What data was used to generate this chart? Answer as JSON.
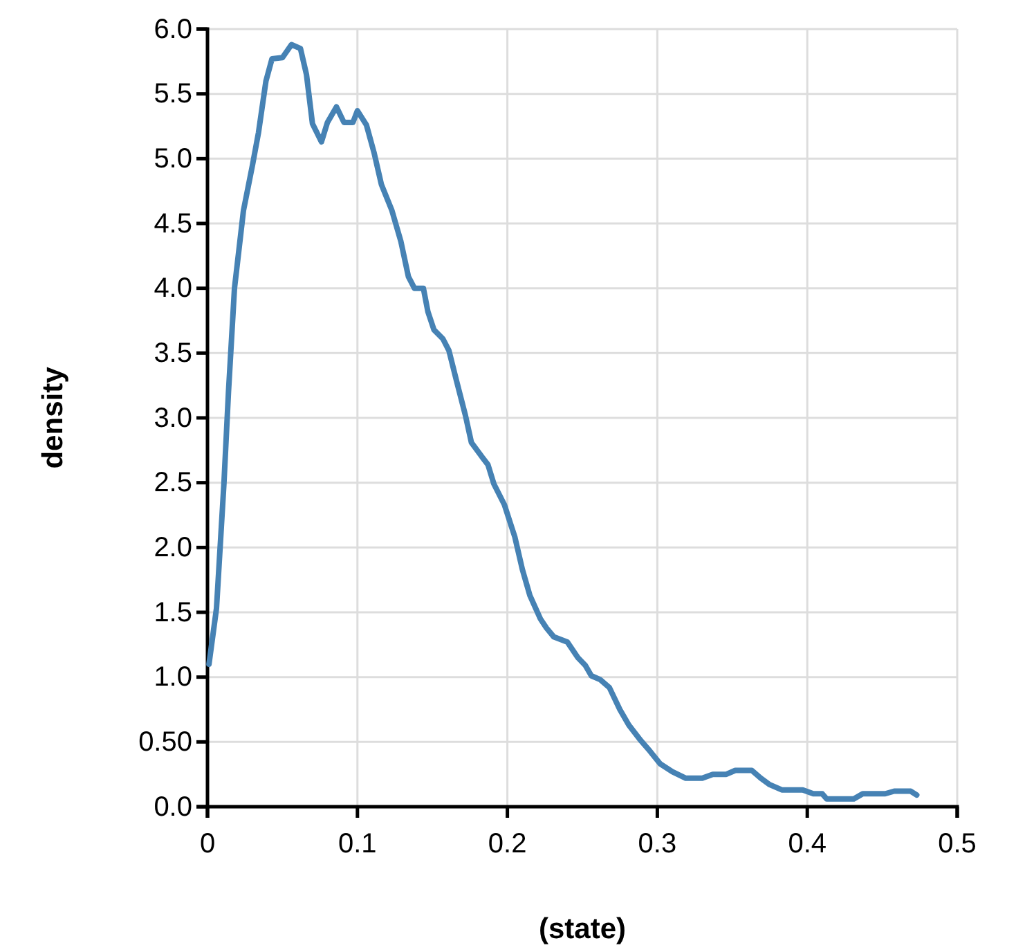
{
  "chart_data": {
    "type": "line",
    "xlabel": "(state)",
    "ylabel": "density",
    "x": [
      0.001,
      0.006,
      0.011,
      0.014,
      0.018,
      0.024,
      0.03,
      0.034,
      0.039,
      0.043,
      0.05,
      0.056,
      0.062,
      0.066,
      0.07,
      0.076,
      0.08,
      0.086,
      0.091,
      0.097,
      0.1,
      0.106,
      0.111,
      0.116,
      0.123,
      0.129,
      0.134,
      0.138,
      0.144,
      0.147,
      0.151,
      0.157,
      0.161,
      0.166,
      0.172,
      0.176,
      0.183,
      0.187,
      0.191,
      0.198,
      0.205,
      0.21,
      0.215,
      0.222,
      0.226,
      0.231,
      0.24,
      0.247,
      0.252,
      0.256,
      0.262,
      0.268,
      0.275,
      0.281,
      0.289,
      0.295,
      0.302,
      0.31,
      0.319,
      0.33,
      0.337,
      0.346,
      0.352,
      0.363,
      0.369,
      0.375,
      0.383,
      0.397,
      0.404,
      0.41,
      0.413,
      0.431,
      0.437,
      0.452,
      0.458,
      0.469,
      0.473
    ],
    "series": [
      {
        "color": "#4682b4",
        "values": [
          1.1,
          1.53,
          2.5,
          3.2,
          4.0,
          4.6,
          4.95,
          5.2,
          5.6,
          5.77,
          5.78,
          5.88,
          5.85,
          5.65,
          5.27,
          5.13,
          5.28,
          5.4,
          5.28,
          5.28,
          5.37,
          5.26,
          5.05,
          4.8,
          4.6,
          4.36,
          4.09,
          4.0,
          4.0,
          3.82,
          3.68,
          3.61,
          3.52,
          3.29,
          3.02,
          2.81,
          2.7,
          2.64,
          2.49,
          2.33,
          2.08,
          1.83,
          1.63,
          1.45,
          1.38,
          1.31,
          1.27,
          1.15,
          1.09,
          1.01,
          0.98,
          0.92,
          0.75,
          0.63,
          0.51,
          0.43,
          0.33,
          0.27,
          0.22,
          0.22,
          0.25,
          0.25,
          0.28,
          0.28,
          0.22,
          0.17,
          0.13,
          0.13,
          0.1,
          0.1,
          0.06,
          0.06,
          0.1,
          0.1,
          0.12,
          0.12,
          0.09
        ]
      }
    ],
    "xlim": [
      0,
      0.5
    ],
    "xticks": [
      0,
      0.1,
      0.2,
      0.3,
      0.4,
      0.5
    ],
    "ylim": [
      0,
      6
    ],
    "yticks": [
      {
        "value": 0,
        "label": "0.0"
      },
      {
        "value": 0.5,
        "label": "0.50"
      },
      {
        "value": 1,
        "label": "1.0"
      },
      1.5,
      {
        "value": 2,
        "label": "2.0"
      },
      2.5,
      {
        "value": 3,
        "label": "3.0"
      },
      3.5,
      {
        "value": 4,
        "label": "4.0"
      },
      4.5,
      {
        "value": 5,
        "label": "5.0"
      },
      5.5,
      {
        "value": 6,
        "label": "6.0"
      }
    ],
    "grid": true,
    "line_style": "solid",
    "marker": "none"
  }
}
